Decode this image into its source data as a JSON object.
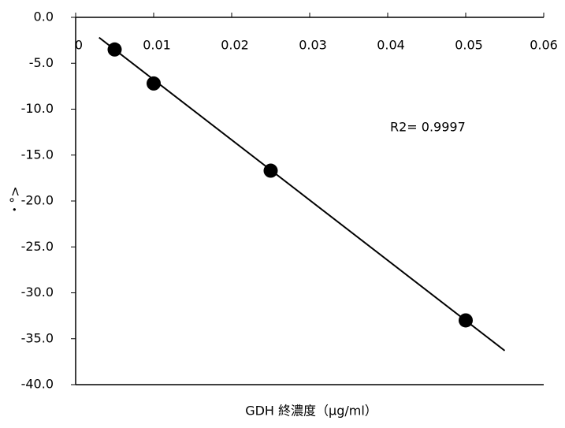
{
  "chart_data": {
    "type": "scatter",
    "x_label": "GDH 終濃度（μg/ml）",
    "y_label": "・°>",
    "annotation": "R2= 0.9997",
    "x": [
      0.005,
      0.01,
      0.025,
      0.05
    ],
    "values": [
      -3.5,
      -7.2,
      -16.7,
      -33.0
    ],
    "color": "#000000",
    "trendline": {
      "x": [
        0.003,
        0.055
      ],
      "y": [
        -2.2,
        -36.3
      ]
    },
    "xlim": [
      0,
      0.06
    ],
    "ylim": [
      -40,
      0
    ],
    "xticks": [
      0,
      0.01,
      0.02,
      0.03,
      0.04,
      0.05,
      0.06
    ],
    "yticks": [
      {
        "value": 0,
        "label": "0.0"
      },
      {
        "value": -5,
        "label": "-5.0"
      },
      {
        "value": -10,
        "label": "-10.0"
      },
      {
        "value": -15,
        "label": "-15.0"
      },
      {
        "value": -20,
        "label": "-20.0"
      },
      {
        "value": -25,
        "label": "-25.0"
      },
      {
        "value": -30,
        "label": "-30.0"
      },
      {
        "value": -35,
        "label": "-35.0"
      },
      {
        "value": -40,
        "label": "-40.0"
      }
    ],
    "grid": false
  }
}
